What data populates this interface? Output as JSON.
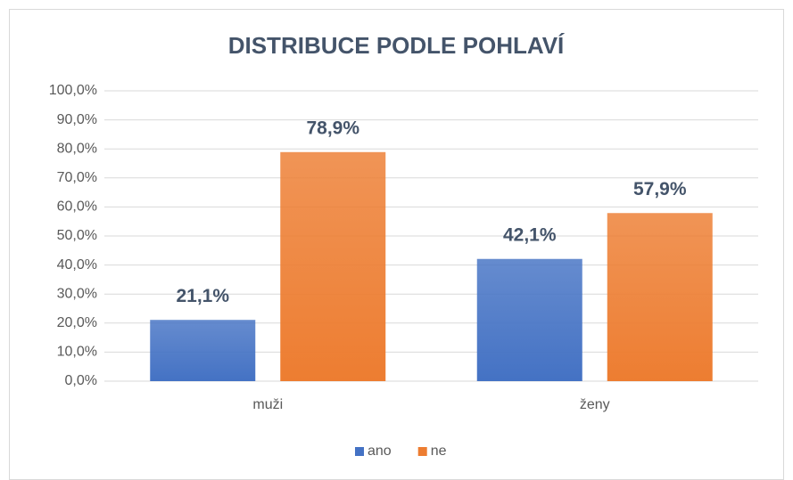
{
  "chart_data": {
    "type": "bar",
    "title": "DISTRIBUCE PODLE POHLAVÍ",
    "categories": [
      "muži",
      "ženy"
    ],
    "series": [
      {
        "name": "ano",
        "color": "#4472c4",
        "values": [
          21.1,
          42.1
        ],
        "value_labels": [
          "21,1%",
          "42,1%"
        ]
      },
      {
        "name": "ne",
        "color": "#ed7d31",
        "values": [
          78.9,
          57.9
        ],
        "value_labels": [
          "78,9%",
          "57,9%"
        ]
      }
    ],
    "ylim": [
      0,
      100
    ],
    "yticks": [
      {
        "value": 0,
        "label": "0,0%"
      },
      {
        "value": 10,
        "label": "10,0%"
      },
      {
        "value": 20,
        "label": "20,0%"
      },
      {
        "value": 30,
        "label": "30,0%"
      },
      {
        "value": 40,
        "label": "40,0%"
      },
      {
        "value": 50,
        "label": "50,0%"
      },
      {
        "value": 60,
        "label": "60,0%"
      },
      {
        "value": 70,
        "label": "70,0%"
      },
      {
        "value": 80,
        "label": "80,0%"
      },
      {
        "value": 90,
        "label": "90,0%"
      },
      {
        "value": 100,
        "label": "100,0%"
      }
    ],
    "grid": true,
    "legend": "bottom"
  }
}
